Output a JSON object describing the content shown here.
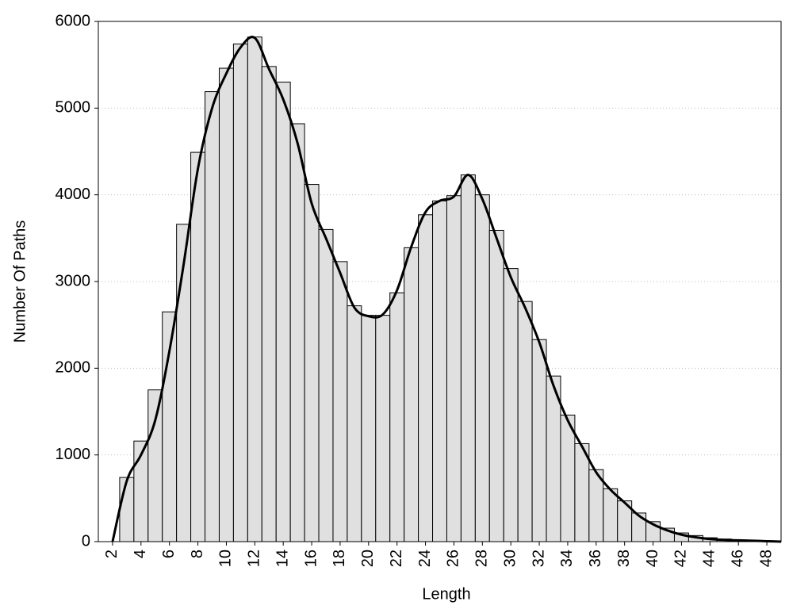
{
  "chart_data": {
    "type": "histogram",
    "xlabel": "Length",
    "ylabel": "Number Of Paths",
    "bins": [
      2.5,
      3.5,
      4.5,
      5.5,
      6.5,
      7.5,
      8.5,
      9.5,
      10.5,
      11.5,
      12.5,
      13.5,
      14.5,
      15.5,
      16.5,
      17.5,
      18.5,
      19.5,
      20.5,
      21.5,
      22.5,
      23.5,
      24.5,
      25.5,
      26.5,
      27.5,
      28.5,
      29.5,
      30.5,
      31.5,
      32.5,
      33.5,
      34.5,
      35.5,
      36.5,
      37.5,
      38.5,
      39.5,
      40.5,
      41.5,
      42.5,
      43.5,
      44.5,
      45.5,
      46.5,
      47.5,
      48.5
    ],
    "values": [
      740,
      1160,
      1750,
      2650,
      3660,
      4490,
      5190,
      5460,
      5740,
      5820,
      5480,
      5300,
      4820,
      4120,
      3600,
      3230,
      2720,
      2610,
      2610,
      2870,
      3390,
      3770,
      3930,
      3990,
      4230,
      4000,
      3590,
      3150,
      2770,
      2330,
      1910,
      1460,
      1130,
      830,
      610,
      470,
      330,
      230,
      155,
      100,
      70,
      45,
      30,
      20,
      10,
      10
    ],
    "color": "#e0e0e0",
    "curve": {
      "x": [
        2,
        3,
        4,
        5,
        6,
        7,
        8,
        9,
        10,
        11,
        12,
        13,
        14,
        15,
        16,
        17,
        18,
        19,
        20,
        21,
        22,
        23,
        24,
        25,
        26,
        27,
        28,
        29,
        30,
        31,
        32,
        33,
        34,
        35,
        36,
        37,
        38,
        39,
        40,
        41,
        42,
        43,
        44,
        45,
        46,
        47,
        48,
        49
      ],
      "values": [
        0,
        700,
        1000,
        1400,
        2200,
        3200,
        4300,
        5000,
        5400,
        5700,
        5810,
        5450,
        5100,
        4600,
        3900,
        3500,
        3100,
        2700,
        2600,
        2620,
        2900,
        3400,
        3800,
        3930,
        3980,
        4230,
        3950,
        3500,
        3050,
        2700,
        2300,
        1800,
        1400,
        1100,
        800,
        600,
        450,
        300,
        200,
        130,
        80,
        50,
        30,
        20,
        15,
        10,
        5,
        0
      ],
      "color": "#000000"
    },
    "xlim": [
      1,
      49
    ],
    "xticks": [
      2,
      4,
      6,
      8,
      10,
      12,
      14,
      16,
      18,
      20,
      22,
      24,
      26,
      28,
      30,
      32,
      34,
      36,
      38,
      40,
      42,
      44,
      46,
      48
    ],
    "ylim": [
      0,
      6000
    ],
    "yticks": [
      0,
      1000,
      2000,
      3000,
      4000,
      5000,
      6000
    ],
    "grid": true
  }
}
